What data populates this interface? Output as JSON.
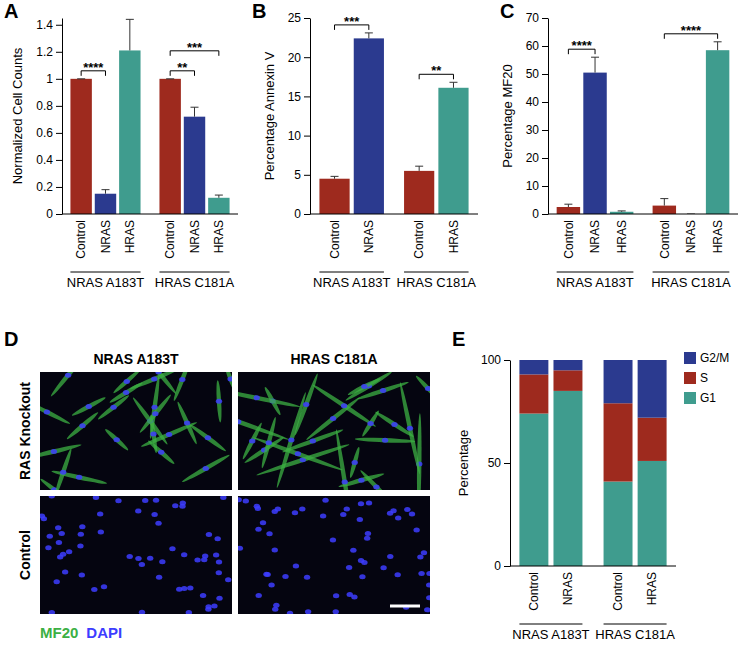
{
  "chart_data": [
    {
      "type": "bar",
      "title": "A",
      "ylabel": "Normalized Cell Counts",
      "categories": [
        "Control",
        "NRAS",
        "HRAS",
        "Control",
        "NRAS",
        "HRAS"
      ],
      "group_labels": [
        "NRAS A183T",
        "NRAS A183T",
        "NRAS A183T",
        "HRAS C181A",
        "HRAS C181A",
        "HRAS C181A"
      ],
      "values": [
        1,
        0.15,
        1.21,
        1,
        0.72,
        0.12
      ],
      "errors": [
        0,
        0.03,
        0.23,
        0,
        0.07,
        0.02
      ],
      "colors": [
        "#9e2a1e",
        "#2b3a8f",
        "#3f9c8e",
        "#9e2a1e",
        "#2b3a8f",
        "#3f9c8e"
      ],
      "ylim": [
        0,
        1.45
      ],
      "yticks": [
        0,
        0.2,
        0.4,
        0.6,
        0.8,
        1,
        1.2,
        1.4
      ],
      "annotations": [
        {
          "text": "****",
          "from": 0,
          "to": 1
        },
        {
          "text": "**",
          "from": 3,
          "to": 4
        },
        {
          "text": "***",
          "from": 3,
          "to": 5
        }
      ]
    },
    {
      "type": "bar",
      "title": "B",
      "ylabel": "Percentage Annexin V",
      "categories": [
        "Control",
        "NRAS",
        "Control",
        "HRAS"
      ],
      "group_labels": [
        "NRAS A183T",
        "NRAS A183T",
        "HRAS C181A",
        "HRAS C181A"
      ],
      "values": [
        4.5,
        22.4,
        5.5,
        16.1
      ],
      "errors": [
        0.3,
        0.7,
        0.6,
        0.7
      ],
      "colors": [
        "#9e2a1e",
        "#2b3a8f",
        "#9e2a1e",
        "#3f9c8e"
      ],
      "ylim": [
        0,
        25
      ],
      "yticks": [
        0,
        5,
        10,
        15,
        20,
        25
      ],
      "annotations": [
        {
          "text": "***",
          "from": 0,
          "to": 1
        },
        {
          "text": "**",
          "from": 2,
          "to": 3
        }
      ]
    },
    {
      "type": "bar",
      "title": "C",
      "ylabel": "Percentage MF20",
      "categories": [
        "Control",
        "NRAS",
        "HRAS",
        "Control",
        "NRAS",
        "HRAS"
      ],
      "group_labels": [
        "NRAS A183T",
        "NRAS A183T",
        "NRAS A183T",
        "HRAS C181A",
        "HRAS C181A",
        "HRAS C181A"
      ],
      "values": [
        2.5,
        50.5,
        0.8,
        3,
        0,
        58.5
      ],
      "errors": [
        1,
        5.5,
        0.3,
        2.5,
        0,
        3
      ],
      "colors": [
        "#9e2a1e",
        "#2b3a8f",
        "#3f9c8e",
        "#9e2a1e",
        "#2b3a8f",
        "#3f9c8e"
      ],
      "ylim": [
        0,
        70
      ],
      "yticks": [
        0,
        10,
        20,
        30,
        40,
        50,
        60,
        70
      ],
      "annotations": [
        {
          "text": "****",
          "from": 0,
          "to": 1
        },
        {
          "text": "****",
          "from": 3,
          "to": 5
        }
      ]
    },
    {
      "type": "bar",
      "title": "E",
      "ylabel": "Percentage",
      "stacked": true,
      "legend": "right",
      "categories": [
        "Control",
        "NRAS",
        "Control",
        "HRAS"
      ],
      "group_labels": [
        "NRAS A183T",
        "NRAS A183T",
        "HRAS C181A",
        "HRAS C181A"
      ],
      "series": [
        {
          "name": "G1",
          "color": "#3f9c8e",
          "values": [
            74,
            85,
            41,
            51
          ]
        },
        {
          "name": "S",
          "color": "#9e2a1e",
          "values": [
            19,
            10,
            38,
            21
          ]
        },
        {
          "name": "G2/M",
          "color": "#2b3a8f",
          "values": [
            7,
            5,
            21,
            28
          ]
        }
      ],
      "ylim": [
        0,
        100
      ],
      "yticks": [
        0,
        50,
        100
      ]
    }
  ],
  "image_panel": {
    "title": "D",
    "columns": [
      "NRAS A183T",
      "HRAS C181A"
    ],
    "rows": [
      "RAS Knockout",
      "Control"
    ],
    "stains": [
      {
        "name": "MF20",
        "color": "#3cb043"
      },
      {
        "name": "DAPI",
        "color": "#3d3dff"
      }
    ]
  }
}
